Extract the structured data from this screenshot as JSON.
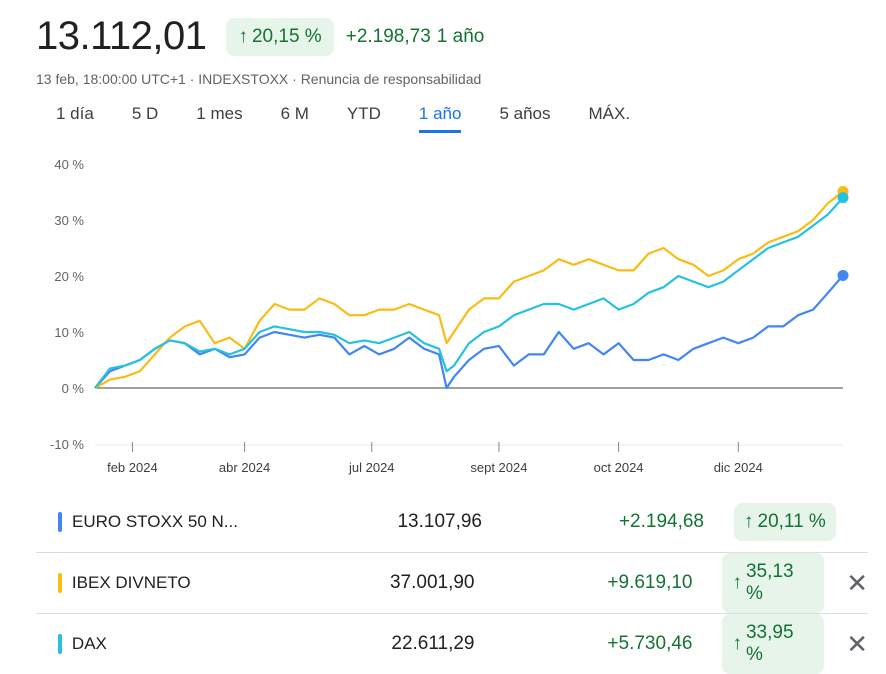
{
  "header": {
    "price": "13.112,01",
    "pct_change": "20,15 %",
    "abs_change": "+2.198,73",
    "period": "1 año"
  },
  "meta": "13 feb, 18:00:00 UTC+1 · INDEXSTOXX · Renuncia de responsabilidad",
  "tabs": [
    "1 día",
    "5 D",
    "1 mes",
    "6 M",
    "YTD",
    "1 año",
    "5 años",
    "MÁX."
  ],
  "active_tab": "1 año",
  "colors": {
    "blue": "#4285f4",
    "yellow": "#f9bc15",
    "teal": "#24c1e0",
    "positive": "#137333",
    "badge_bg": "#e6f4ea"
  },
  "chart_data": {
    "type": "line",
    "y_unit": "%",
    "ylim": [
      -10,
      40
    ],
    "y_ticks": [
      "40 %",
      "30 %",
      "20 %",
      "10 %",
      "0 %",
      "-10 %"
    ],
    "y_tick_values": [
      40,
      30,
      20,
      10,
      0,
      -10
    ],
    "x_tick_labels": [
      "feb 2024",
      "abr 2024",
      "jul 2024",
      "sept 2024",
      "oct 2024",
      "dic 2024"
    ],
    "x_tick_positions": [
      0.05,
      0.2,
      0.37,
      0.54,
      0.7,
      0.86
    ],
    "x": [
      0,
      0.02,
      0.04,
      0.06,
      0.08,
      0.1,
      0.12,
      0.14,
      0.16,
      0.18,
      0.2,
      0.22,
      0.24,
      0.26,
      0.28,
      0.3,
      0.32,
      0.34,
      0.36,
      0.38,
      0.4,
      0.42,
      0.44,
      0.46,
      0.47,
      0.48,
      0.5,
      0.52,
      0.54,
      0.56,
      0.58,
      0.6,
      0.62,
      0.64,
      0.66,
      0.68,
      0.7,
      0.72,
      0.74,
      0.76,
      0.78,
      0.8,
      0.82,
      0.84,
      0.86,
      0.88,
      0.9,
      0.92,
      0.94,
      0.96,
      0.98,
      1.0
    ],
    "series": [
      {
        "name": "EURO STOXX 50 N...",
        "color": "#4285f4",
        "values": [
          0,
          3,
          4,
          5,
          7,
          8.5,
          8,
          6,
          7,
          5.5,
          6,
          9,
          10,
          9.5,
          9,
          9.5,
          9,
          6,
          7.5,
          6,
          7,
          9,
          7,
          6,
          0,
          2,
          5,
          7,
          7.5,
          4,
          6,
          6,
          10,
          7,
          8,
          6,
          8,
          5,
          5,
          6,
          5,
          7,
          8,
          9,
          8,
          9,
          11,
          11,
          13,
          14,
          17,
          20.1
        ]
      },
      {
        "name": "IBEX DIVNETO",
        "color": "#f9bc15",
        "values": [
          0,
          1.5,
          2,
          3,
          6,
          9,
          11,
          12,
          8,
          9,
          7,
          12,
          15,
          14,
          14,
          16,
          15,
          13,
          13,
          14,
          14,
          15,
          14,
          13,
          8,
          10,
          14,
          16,
          16,
          19,
          20,
          21,
          23,
          22,
          23,
          22,
          21,
          21,
          24,
          25,
          23,
          22,
          20,
          21,
          23,
          24,
          26,
          27,
          28,
          30,
          33,
          35.1
        ]
      },
      {
        "name": "DAX",
        "color": "#24c1e0",
        "values": [
          0,
          3.5,
          4,
          5,
          7,
          8.5,
          8,
          6.5,
          7,
          6,
          7,
          10,
          11,
          10.5,
          10,
          10,
          9.5,
          8,
          8.5,
          8,
          9,
          10,
          8,
          7,
          3,
          4,
          8,
          10,
          11,
          13,
          14,
          15,
          15,
          14,
          15,
          16,
          14,
          15,
          17,
          18,
          20,
          19,
          18,
          19,
          21,
          23,
          25,
          26,
          27,
          29,
          31,
          34
        ]
      }
    ]
  },
  "table": [
    {
      "name": "EURO STOXX 50 N...",
      "value": "13.107,96",
      "abs": "+2.194,68",
      "pct": "20,11 %",
      "color": "#4285f4",
      "removable": false
    },
    {
      "name": "IBEX DIVNETO",
      "value": "37.001,90",
      "abs": "+9.619,10",
      "pct": "35,13 %",
      "color": "#f9bc15",
      "removable": true
    },
    {
      "name": "DAX",
      "value": "22.611,29",
      "abs": "+5.730,46",
      "pct": "33,95 %",
      "color": "#24c1e0",
      "removable": true
    }
  ]
}
